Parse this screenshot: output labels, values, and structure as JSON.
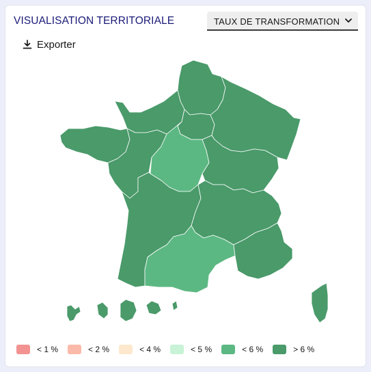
{
  "header": {
    "title": "VISUALISATION TERRITORIALE"
  },
  "select": {
    "value": "TAUX DE TRANSFORMATION",
    "icon": "chevron-down-icon"
  },
  "export": {
    "label": "Exporter",
    "icon": "download-icon"
  },
  "colors": {
    "high": "#4a9a6a",
    "mid": "#5cb882",
    "border": "#ffffff",
    "title": "#1b1b7a"
  },
  "legend": [
    {
      "label": "< 1 %",
      "color": "#f29291"
    },
    {
      "label": "< 2 %",
      "color": "#fbbaa9"
    },
    {
      "label": "< 4 %",
      "color": "#fde8cd"
    },
    {
      "label": "< 5 %",
      "color": "#c8f3d6"
    },
    {
      "label": "< 6 %",
      "color": "#5cb882"
    },
    {
      "label": "> 6 %",
      "color": "#4a9a6a"
    }
  ],
  "regions": [
    {
      "name": "Hauts-de-France",
      "class": "> 6 %"
    },
    {
      "name": "Normandie",
      "class": "> 6 %"
    },
    {
      "name": "Île-de-France",
      "class": "> 6 %"
    },
    {
      "name": "Grand Est",
      "class": "> 6 %"
    },
    {
      "name": "Bretagne",
      "class": "> 6 %"
    },
    {
      "name": "Pays de la Loire",
      "class": "> 6 %"
    },
    {
      "name": "Centre-Val de Loire",
      "class": "< 6 %"
    },
    {
      "name": "Bourgogne-Franche-Comté",
      "class": "> 6 %"
    },
    {
      "name": "Nouvelle-Aquitaine",
      "class": "> 6 %"
    },
    {
      "name": "Auvergne-Rhône-Alpes",
      "class": "> 6 %"
    },
    {
      "name": "Occitanie",
      "class": "< 6 %"
    },
    {
      "name": "Provence-Alpes-Côte d'Azur",
      "class": "> 6 %"
    },
    {
      "name": "Corse",
      "class": "> 6 %"
    },
    {
      "name": "Guadeloupe",
      "class": "> 6 %"
    },
    {
      "name": "Martinique",
      "class": "> 6 %"
    },
    {
      "name": "Guyane",
      "class": "> 6 %"
    },
    {
      "name": "La Réunion",
      "class": "> 6 %"
    },
    {
      "name": "Mayotte",
      "class": "> 6 %"
    }
  ]
}
